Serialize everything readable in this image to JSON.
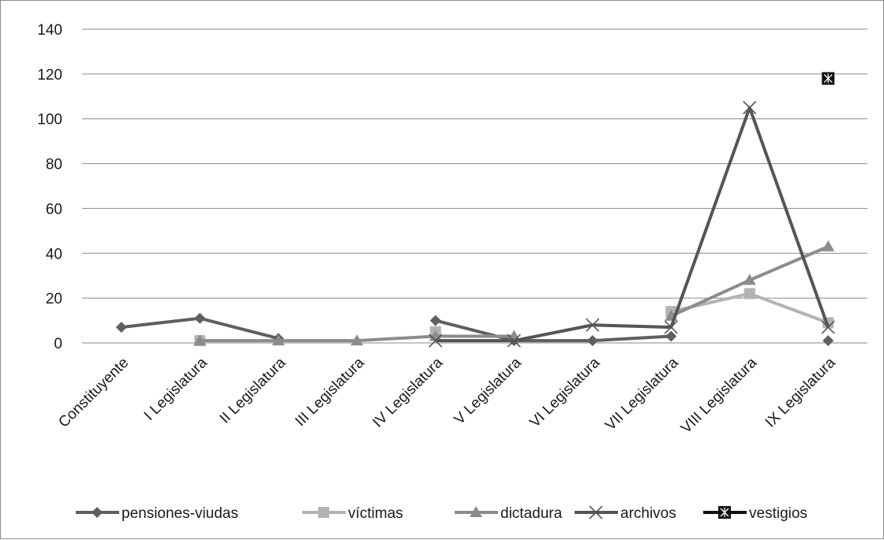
{
  "chart_data": {
    "type": "line",
    "title": "",
    "xlabel": "",
    "ylabel": "",
    "ylim": [
      0,
      140
    ],
    "yticks": [
      0,
      20,
      40,
      60,
      80,
      100,
      120,
      140
    ],
    "grid": "horizontal",
    "legend_position": "bottom",
    "categories": [
      "Constituyente",
      "I Legislatura",
      "II Legislatura",
      "III Legislatura",
      "IV Legislatura",
      "V Legislatura",
      "VI Legislatura",
      "VII Legislatura",
      "VIII Legislatura",
      "IX Legislatura"
    ],
    "series": [
      {
        "name": "pensiones-viudas",
        "marker": "diamond",
        "color": "#5f5f5f",
        "values": [
          7,
          11,
          2,
          null,
          10,
          1,
          1,
          3,
          null,
          1
        ]
      },
      {
        "name": "víctimas",
        "marker": "square",
        "color": "#b3b3b3",
        "values": [
          null,
          1,
          null,
          null,
          5,
          null,
          null,
          14,
          22,
          9
        ]
      },
      {
        "name": "dictadura",
        "marker": "triangle",
        "color": "#8c8c8c",
        "values": [
          null,
          1,
          1,
          1,
          3,
          3,
          null,
          12,
          28,
          43
        ]
      },
      {
        "name": "archivos",
        "marker": "x",
        "color": "#555555",
        "values": [
          null,
          null,
          null,
          null,
          1,
          1,
          8,
          7,
          105,
          7
        ]
      },
      {
        "name": "vestigios",
        "marker": "boxed-star",
        "color": "#111111",
        "values": [
          null,
          null,
          null,
          null,
          null,
          null,
          null,
          null,
          null,
          118
        ]
      }
    ]
  }
}
